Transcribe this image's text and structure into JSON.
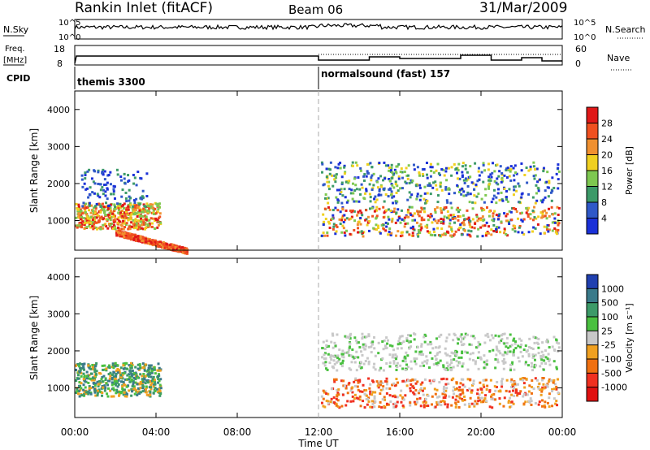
{
  "header": {
    "title": "Rankin Inlet (fitACF)",
    "beam": "Beam 06",
    "date": "31/Mar/2009"
  },
  "strip_labels": {
    "nsky": "N.Sky",
    "nsearch": "N.Search",
    "freq": "Freq.",
    "freq_unit": "[MHz]",
    "nave": "Nave",
    "cpid": "CPID"
  },
  "strip_ticks": {
    "nsky_top": "10^5",
    "nsky_bottom": "10^0",
    "nsearch_top": "10^5",
    "nsearch_bottom": "10^0",
    "freq_top": "18",
    "freq_bottom": "8",
    "nave_top": "60",
    "nave_bottom": "0"
  },
  "cpid_modes": [
    {
      "label": "themis 3300",
      "start_hour": 0
    },
    {
      "label": "normalsound (fast) 157",
      "start_hour": 12
    }
  ],
  "chart_data": [
    {
      "type": "heatmap",
      "quantity": "Power",
      "ylabel": "Slant Range [km]",
      "xlabel": "Time UT",
      "x_ticks": [
        "00:00",
        "04:00",
        "08:00",
        "12:00",
        "16:00",
        "20:00",
        "00:00"
      ],
      "y_ticks": [
        "1000",
        "2000",
        "3000",
        "4000"
      ],
      "y_tick_values": [
        1000,
        2000,
        3000,
        4000
      ],
      "ylim": [
        200,
        4500
      ],
      "xlim_hours": [
        0,
        24
      ],
      "colorbar_label": "Power [dB]",
      "colorbar_ticks": [
        "4",
        "8",
        "12",
        "16",
        "20",
        "24",
        "28"
      ],
      "colorbar_colors": [
        "#1a30d8",
        "#2f58c8",
        "#3c9a68",
        "#7ec850",
        "#f0d020",
        "#f09030",
        "#f05020",
        "#e01818"
      ],
      "clim": [
        0,
        32
      ]
    },
    {
      "type": "heatmap",
      "quantity": "Velocity",
      "ylabel": "Slant Range [km]",
      "xlabel": "Time UT",
      "x_ticks": [
        "00:00",
        "04:00",
        "08:00",
        "12:00",
        "16:00",
        "20:00",
        "00:00"
      ],
      "y_ticks": [
        "1000",
        "2000",
        "3000",
        "4000"
      ],
      "y_tick_values": [
        1000,
        2000,
        3000,
        4000
      ],
      "ylim": [
        200,
        4500
      ],
      "xlim_hours": [
        0,
        24
      ],
      "colorbar_label": "Velocity [m s⁻¹]",
      "colorbar_ticks": [
        "1000",
        "500",
        "100",
        "25",
        "-25",
        "-100",
        "-500",
        "-1000"
      ],
      "colorbar_colors": [
        "#2040b0",
        "#3a7a8a",
        "#3c9a68",
        "#4ac040",
        "#c8c8c8",
        "#f0a020",
        "#f07010",
        "#f03020",
        "#e01010"
      ]
    }
  ],
  "scatter_regions": [
    {
      "panel": 0,
      "t0": 0.0,
      "t1": 4.2,
      "r0": 800,
      "r1": 1500,
      "kind": "red_band"
    },
    {
      "panel": 0,
      "t0": 2.0,
      "t1": 5.5,
      "r0": 200,
      "r1": 700,
      "kind": "red_diag"
    },
    {
      "panel": 0,
      "t0": 0.3,
      "t1": 3.5,
      "r0": 1400,
      "r1": 2400,
      "kind": "blue_sparse"
    },
    {
      "panel": 0,
      "t0": 12.1,
      "t1": 23.8,
      "r0": 600,
      "r1": 1400,
      "kind": "mixed"
    },
    {
      "panel": 0,
      "t0": 12.1,
      "t1": 23.8,
      "r0": 1500,
      "r1": 2600,
      "kind": "mixed_upper"
    },
    {
      "panel": 1,
      "t0": 0.0,
      "t1": 4.2,
      "r0": 800,
      "r1": 1700,
      "kind": "green"
    },
    {
      "panel": 1,
      "t0": 12.1,
      "t1": 23.8,
      "r0": 500,
      "r1": 1300,
      "kind": "orange"
    },
    {
      "panel": 1,
      "t0": 12.1,
      "t1": 23.8,
      "r0": 1500,
      "r1": 2500,
      "kind": "grey"
    }
  ]
}
